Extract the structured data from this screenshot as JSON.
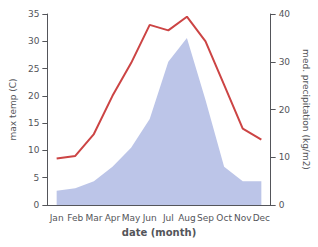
{
  "chart_data": {
    "type": "line",
    "xlabel": "date (month)",
    "ylabel": "max temp (C)",
    "y2label": "med. precipitation (kg/m2)",
    "categories": [
      "Jan",
      "Feb",
      "Mar",
      "Apr",
      "May",
      "Jun",
      "Jul",
      "Aug",
      "Sep",
      "Oct",
      "Nov",
      "Dec"
    ],
    "series": [
      {
        "type": "area",
        "color": "#bcc5e8",
        "axis": "y2",
        "values": [
          3.0,
          3.5,
          5.0,
          8.0,
          12.0,
          18.0,
          30.0,
          35.0,
          22.0,
          8.0,
          5.0,
          5.0
        ]
      },
      {
        "type": "line",
        "color": "#cc4444",
        "values": [
          8.5,
          9.0,
          13.0,
          20.0,
          26.0,
          33.0,
          32.0,
          34.5,
          30.0,
          22.0,
          14.0,
          12.0
        ]
      }
    ],
    "ylim": [
      0,
      35
    ],
    "yticks": [
      0,
      5,
      10,
      15,
      20,
      25,
      30,
      35
    ],
    "y2lim": [
      0,
      40
    ],
    "y2ticks": [
      0,
      10,
      20,
      30,
      40
    ],
    "grid": false
  }
}
